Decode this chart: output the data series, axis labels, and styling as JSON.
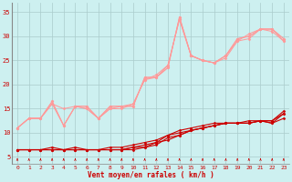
{
  "x": [
    0,
    1,
    2,
    3,
    4,
    5,
    6,
    7,
    8,
    9,
    10,
    11,
    12,
    13,
    14,
    15,
    16,
    17,
    18,
    19,
    20,
    21,
    22,
    23
  ],
  "mean1": [
    6.5,
    6.5,
    6.5,
    6.5,
    6.5,
    6.5,
    6.5,
    6.5,
    6.5,
    6.5,
    7.0,
    7.5,
    8.0,
    9.5,
    10.5,
    11.0,
    11.5,
    12.0,
    12.0,
    12.0,
    12.5,
    12.5,
    12.0,
    13.0
  ],
  "mean2": [
    6.5,
    6.5,
    6.5,
    7.0,
    6.5,
    7.0,
    6.5,
    6.5,
    6.5,
    6.5,
    6.5,
    7.0,
    7.5,
    9.0,
    9.5,
    10.5,
    11.0,
    11.5,
    12.0,
    12.0,
    12.0,
    12.5,
    12.5,
    14.0
  ],
  "mean3": [
    6.5,
    6.5,
    6.5,
    6.5,
    6.5,
    6.5,
    6.5,
    6.5,
    7.0,
    7.0,
    7.5,
    8.0,
    8.5,
    9.5,
    10.0,
    10.5,
    11.0,
    11.5,
    12.0,
    12.0,
    12.0,
    12.5,
    12.5,
    14.5
  ],
  "mean4": [
    6.5,
    6.5,
    6.5,
    6.5,
    6.5,
    6.5,
    6.5,
    6.5,
    6.5,
    6.5,
    7.0,
    7.0,
    8.0,
    8.5,
    9.5,
    10.5,
    11.0,
    11.5,
    12.0,
    12.0,
    12.0,
    12.5,
    12.0,
    14.0
  ],
  "gust1": [
    11.0,
    13.0,
    13.0,
    16.5,
    11.5,
    15.5,
    15.0,
    13.0,
    15.5,
    15.5,
    15.5,
    21.5,
    21.5,
    23.5,
    34.0,
    26.0,
    25.0,
    24.5,
    26.0,
    29.5,
    30.0,
    31.5,
    31.5,
    29.5
  ],
  "gust2": [
    11.0,
    13.0,
    13.0,
    16.0,
    15.0,
    15.5,
    15.5,
    13.0,
    15.0,
    15.0,
    16.0,
    21.0,
    21.5,
    24.0,
    33.5,
    26.0,
    25.0,
    24.5,
    25.5,
    29.0,
    29.5,
    31.5,
    31.5,
    29.0
  ],
  "gust3": [
    11.0,
    13.0,
    13.0,
    16.0,
    11.5,
    15.5,
    15.0,
    13.0,
    15.5,
    15.5,
    15.5,
    21.5,
    21.5,
    23.5,
    34.0,
    26.0,
    25.0,
    24.5,
    26.0,
    29.5,
    30.0,
    31.5,
    31.5,
    29.5
  ],
  "gust4": [
    11.0,
    13.0,
    13.0,
    16.5,
    11.5,
    15.5,
    15.5,
    13.0,
    15.0,
    15.5,
    16.0,
    21.0,
    22.0,
    24.0,
    33.5,
    26.0,
    25.0,
    24.5,
    26.0,
    29.0,
    30.5,
    31.5,
    31.0,
    29.0
  ],
  "bg_color": "#cdf0f0",
  "grid_color": "#aacccc",
  "line_dark": "#cc0000",
  "line_light": "#ff9999",
  "xlabel": "Vent moyen/en rafales ( km/h )",
  "ylim": [
    3.5,
    37
  ],
  "xlim": [
    -0.5,
    23.5
  ],
  "yticks": [
    5,
    10,
    15,
    20,
    25,
    30,
    35
  ],
  "xticks": [
    0,
    1,
    2,
    3,
    4,
    5,
    6,
    7,
    8,
    9,
    10,
    11,
    12,
    13,
    14,
    15,
    16,
    17,
    18,
    19,
    20,
    21,
    22,
    23
  ]
}
